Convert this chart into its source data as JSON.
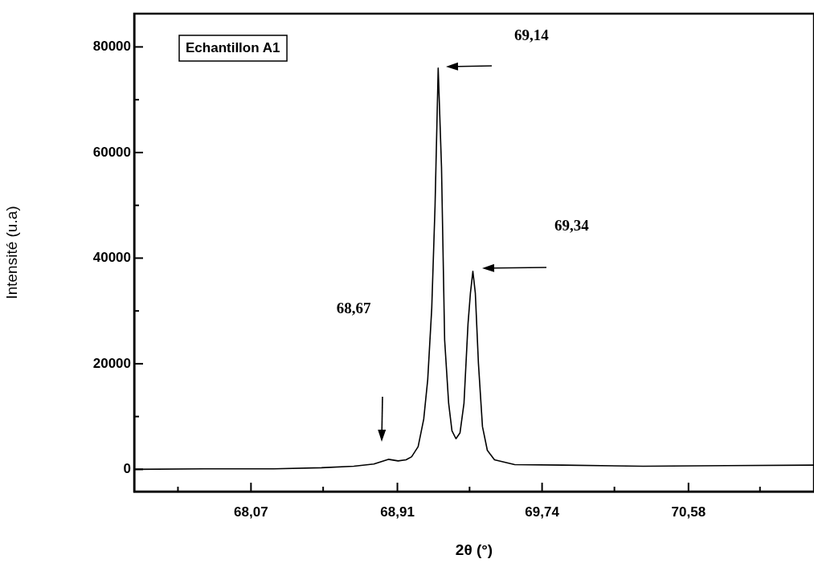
{
  "chart_data": {
    "type": "line",
    "xlabel": "2θ (°)",
    "ylabel": "Intensité (u.a)",
    "annotations": [
      "Echantillon A1",
      "69,14",
      "69,34",
      "68,67"
    ],
    "x": [
      67.4,
      67.8,
      68.2,
      68.475,
      68.66,
      68.775,
      68.858,
      68.914,
      68.96,
      68.992,
      69.029,
      69.061,
      69.084,
      69.107,
      69.126,
      69.144,
      69.163,
      69.181,
      69.204,
      69.223,
      69.246,
      69.269,
      69.292,
      69.315,
      69.329,
      69.343,
      69.357,
      69.375,
      69.398,
      69.426,
      69.467,
      69.583,
      69.86,
      70.32,
      70.8,
      71.3
    ],
    "series": [
      {
        "color": "#000000",
        "values": [
          0,
          100,
          100,
          300,
          600,
          1000,
          1900,
          1600,
          1800,
          2400,
          4300,
          9500,
          17000,
          30500,
          49900,
          76000,
          57300,
          24500,
          12500,
          7300,
          5800,
          6900,
          12500,
          27500,
          33400,
          37500,
          33400,
          20000,
          8100,
          3600,
          1800,
          900,
          800,
          600,
          700,
          800
        ]
      }
    ],
    "xlim": [
      67.4,
      71.3
    ],
    "ylim": [
      -4200,
      86300
    ],
    "xticks": [
      {
        "value": 67.651,
        "label": null
      },
      {
        "value": 68.07,
        "label": "68,07"
      },
      {
        "value": 68.484,
        "label": null
      },
      {
        "value": 68.91,
        "label": "68,91"
      },
      {
        "value": 69.324,
        "label": null
      },
      {
        "value": 69.74,
        "label": "69,74"
      },
      {
        "value": 70.155,
        "label": null
      },
      {
        "value": 70.58,
        "label": "70,58"
      },
      {
        "value": 70.99,
        "label": null
      }
    ],
    "yticks": [
      0,
      {
        "value": 10000,
        "label": null
      },
      20000,
      {
        "value": 30000,
        "label": null
      },
      40000,
      {
        "value": 50000,
        "label": null
      },
      60000,
      {
        "value": 70000,
        "label": null
      },
      80000
    ],
    "line_style": "solid"
  }
}
